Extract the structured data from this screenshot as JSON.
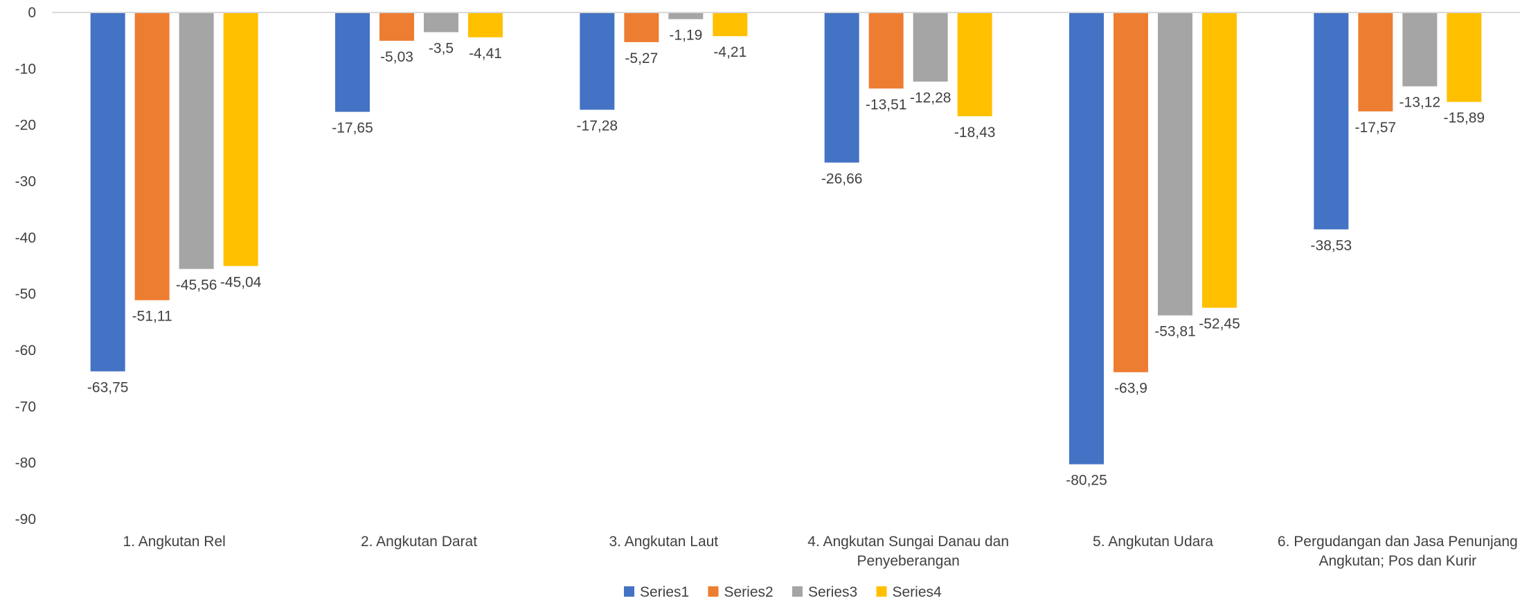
{
  "chart_data": {
    "type": "bar",
    "categories": [
      [
        "1. Angkutan Rel"
      ],
      [
        "2. Angkutan Darat"
      ],
      [
        "3. Angkutan Laut"
      ],
      [
        "4. Angkutan Sungai Danau dan",
        "Penyeberangan"
      ],
      [
        "5. Angkutan Udara"
      ],
      [
        "6. Pergudangan dan Jasa Penunjang",
        "Angkutan; Pos dan Kurir"
      ]
    ],
    "series": [
      {
        "name": "Series1",
        "color": "#4472C4",
        "values": [
          -63.75,
          -17.65,
          -17.28,
          -26.66,
          -80.25,
          -38.53
        ],
        "labels": [
          "-63,75",
          "-17,65",
          "-17,28",
          "-26,66",
          "-80,25",
          "-38,53"
        ]
      },
      {
        "name": "Series2",
        "color": "#ED7D31",
        "values": [
          -51.11,
          -5.03,
          -5.27,
          -13.51,
          -63.9,
          -17.57
        ],
        "labels": [
          "-51,11",
          "-5,03",
          "-5,27",
          "-13,51",
          "-63,9",
          "-17,57"
        ]
      },
      {
        "name": "Series3",
        "color": "#A5A5A5",
        "values": [
          -45.56,
          -3.5,
          -1.19,
          -12.28,
          -53.81,
          -13.12
        ],
        "labels": [
          "-45,56",
          "-3,5",
          "-1,19",
          "-12,28",
          "-53,81",
          "-13,12"
        ]
      },
      {
        "name": "Series4",
        "color": "#FFC000",
        "values": [
          -45.04,
          -4.41,
          -4.21,
          -18.43,
          -52.45,
          -15.89
        ],
        "labels": [
          "-45,04",
          "-4,41",
          "-4,21",
          "-18,43",
          "-52,45",
          "-15,89"
        ]
      }
    ],
    "yticks": [
      "0",
      "-10",
      "-20",
      "-30",
      "-40",
      "-50",
      "-60",
      "-70",
      "-80",
      "-90"
    ],
    "ylim": [
      -90,
      0
    ],
    "grid": false,
    "legend_position": "bottom-center",
    "title": "",
    "xlabel": "",
    "ylabel": ""
  }
}
